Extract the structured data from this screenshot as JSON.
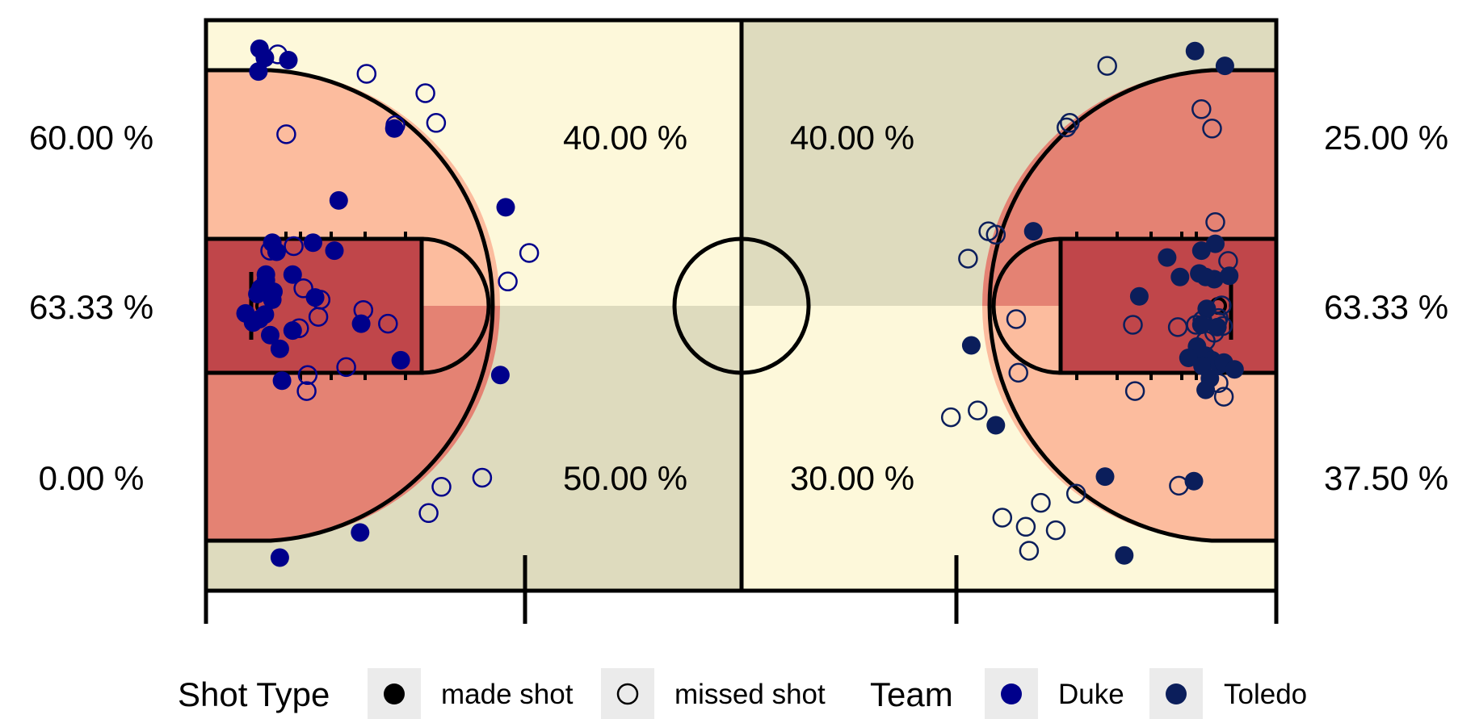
{
  "chart_data": {
    "type": "scatter",
    "coord_units": "court grid: x 0-100 left-to-right, y 0-50 top-to-bottom",
    "x_range": [
      0,
      100
    ],
    "y_range": [
      0,
      50
    ],
    "grid": false,
    "zone_colors": {
      "light_yellow": "#fdf8da",
      "light_gray": "#dedbbe",
      "light_orange": "#fcbc9e",
      "orange": "#e48273",
      "dark_red": "#c0464a"
    },
    "zones": {
      "left_corner_top": {
        "pct": "60.00 %",
        "color": "light_orange"
      },
      "left_paint_mid": {
        "pct": "63.33 %",
        "color": "dark_red"
      },
      "left_corner_bottom": {
        "pct": "0.00 %",
        "color": "orange"
      },
      "left_three_top": {
        "pct": "40.00 %",
        "color": "light_yellow"
      },
      "left_three_bottom": {
        "pct": "50.00 %",
        "color": "light_gray"
      },
      "right_three_top": {
        "pct": "40.00 %",
        "color": "light_gray"
      },
      "right_three_bottom": {
        "pct": "30.00 %",
        "color": "light_yellow"
      },
      "right_corner_top": {
        "pct": "25.00 %",
        "color": "orange"
      },
      "right_paint_mid": {
        "pct": "63.33 %",
        "color": "dark_red"
      },
      "right_corner_bottom": {
        "pct": "37.50 %",
        "color": "light_orange"
      }
    },
    "team_colors": {
      "Duke": "#00008b",
      "Toledo": "#0b1e5b"
    },
    "series": [
      {
        "name": "Duke",
        "made": [
          [
            5.0,
            2.5
          ],
          [
            5.5,
            3.3
          ],
          [
            7.7,
            3.5
          ],
          [
            4.9,
            4.5
          ],
          [
            17.6,
            9.5
          ],
          [
            12.4,
            15.8
          ],
          [
            10.0,
            19.5
          ],
          [
            6.2,
            19.5
          ],
          [
            6.6,
            20.3
          ],
          [
            12.0,
            20.2
          ],
          [
            5.6,
            22.3
          ],
          [
            8.1,
            22.3
          ],
          [
            5.6,
            22.8
          ],
          [
            5.1,
            23.5
          ],
          [
            4.8,
            24.0
          ],
          [
            6.3,
            23.8
          ],
          [
            10.2,
            24.3
          ],
          [
            6.2,
            24.5
          ],
          [
            5.5,
            25.8
          ],
          [
            3.7,
            25.7
          ],
          [
            5.0,
            26.2
          ],
          [
            4.4,
            26.5
          ],
          [
            6.0,
            27.6
          ],
          [
            8.1,
            27.2
          ],
          [
            14.5,
            26.6
          ],
          [
            6.9,
            28.8
          ],
          [
            18.2,
            29.8
          ],
          [
            7.1,
            31.6
          ],
          [
            27.5,
            31.1
          ],
          [
            28.0,
            16.4
          ],
          [
            14.4,
            44.9
          ],
          [
            6.9,
            47.1
          ]
        ],
        "missed": [
          [
            6.7,
            3.0
          ],
          [
            15.0,
            4.7
          ],
          [
            20.5,
            6.4
          ],
          [
            21.5,
            9.0
          ],
          [
            17.7,
            9.2
          ],
          [
            7.5,
            10.0
          ],
          [
            30.2,
            20.4
          ],
          [
            8.2,
            19.8
          ],
          [
            6.0,
            20.2
          ],
          [
            28.2,
            22.9
          ],
          [
            9.1,
            23.5
          ],
          [
            10.7,
            24.5
          ],
          [
            14.7,
            25.4
          ],
          [
            10.5,
            26.0
          ],
          [
            17.0,
            26.6
          ],
          [
            8.7,
            27.0
          ],
          [
            13.1,
            30.4
          ],
          [
            9.5,
            31.1
          ],
          [
            9.4,
            32.5
          ],
          [
            25.8,
            40.1
          ],
          [
            22.0,
            40.9
          ],
          [
            20.8,
            43.2
          ]
        ]
      },
      {
        "name": "Toledo",
        "made": [
          [
            92.4,
            2.7
          ],
          [
            95.2,
            4.0
          ],
          [
            77.3,
            18.5
          ],
          [
            94.3,
            19.6
          ],
          [
            89.8,
            20.8
          ],
          [
            93.0,
            20.2
          ],
          [
            91.0,
            22.5
          ],
          [
            92.8,
            22.2
          ],
          [
            94.2,
            22.7
          ],
          [
            95.6,
            22.4
          ],
          [
            93.4,
            22.5
          ],
          [
            87.2,
            24.2
          ],
          [
            93.5,
            25.3
          ],
          [
            93.0,
            26.7
          ],
          [
            94.5,
            26.9
          ],
          [
            92.6,
            28.6
          ],
          [
            93.4,
            29.4
          ],
          [
            94.0,
            29.8
          ],
          [
            93.1,
            30.3
          ],
          [
            94.7,
            30.2
          ],
          [
            91.8,
            29.6
          ],
          [
            95.1,
            30.0
          ],
          [
            96.1,
            30.6
          ],
          [
            93.8,
            31.4
          ],
          [
            93.4,
            32.4
          ],
          [
            71.5,
            28.5
          ],
          [
            73.8,
            35.5
          ],
          [
            84.0,
            40.0
          ],
          [
            92.3,
            40.4
          ],
          [
            85.8,
            46.9
          ]
        ],
        "missed": [
          [
            84.2,
            4.0
          ],
          [
            93.0,
            7.8
          ],
          [
            94.0,
            9.5
          ],
          [
            80.7,
            9.0
          ],
          [
            80.4,
            9.4
          ],
          [
            73.1,
            18.5
          ],
          [
            73.8,
            18.8
          ],
          [
            71.2,
            20.9
          ],
          [
            94.3,
            17.7
          ],
          [
            95.5,
            21.1
          ],
          [
            94.9,
            25.0
          ],
          [
            94.6,
            26.1
          ],
          [
            94.5,
            26.4
          ],
          [
            95.0,
            26.8
          ],
          [
            94.2,
            27.4
          ],
          [
            92.5,
            26.7
          ],
          [
            90.8,
            26.9
          ],
          [
            93.1,
            26.3
          ],
          [
            86.6,
            26.7
          ],
          [
            75.7,
            26.2
          ],
          [
            93.4,
            28.1
          ],
          [
            75.9,
            30.9
          ],
          [
            86.8,
            32.5
          ],
          [
            94.6,
            31.8
          ],
          [
            95.1,
            33.0
          ],
          [
            69.6,
            34.8
          ],
          [
            72.1,
            34.2
          ],
          [
            90.9,
            40.8
          ],
          [
            81.3,
            41.5
          ],
          [
            78.0,
            42.3
          ],
          [
            74.4,
            43.6
          ],
          [
            76.6,
            44.4
          ],
          [
            79.4,
            44.7
          ],
          [
            76.9,
            46.5
          ]
        ]
      }
    ]
  },
  "legend": {
    "shot_type_title": "Shot Type",
    "made_label": "made shot",
    "missed_label": "missed shot",
    "team_title": "Team",
    "duke_label": "Duke",
    "toledo_label": "Toledo"
  }
}
